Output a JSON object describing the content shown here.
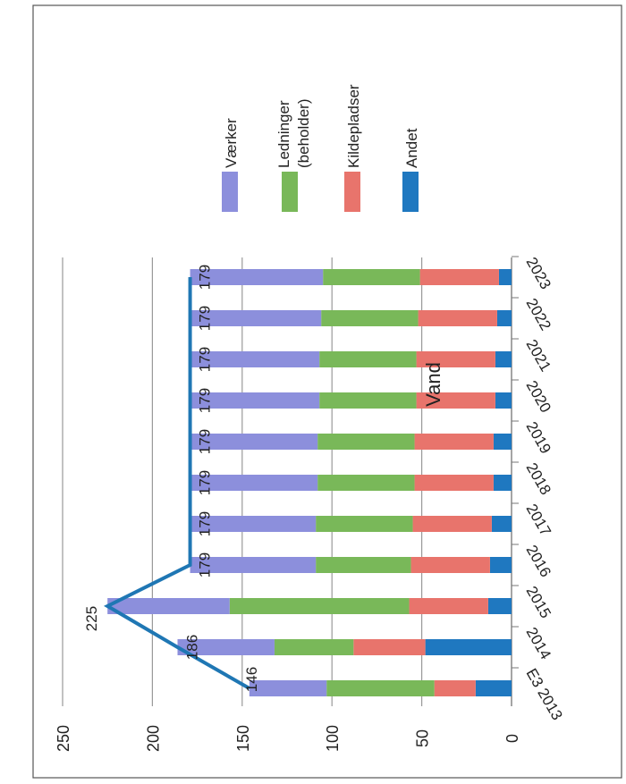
{
  "chart_data": {
    "type": "bar",
    "stacked": true,
    "orientation": "horizontal",
    "rotation": "rotated 90 degrees",
    "title": "Vand",
    "categories": [
      "E3 2013",
      "2014",
      "2015",
      "2016",
      "2017",
      "2018",
      "2019",
      "2020",
      "2021",
      "2022",
      "2023"
    ],
    "series": [
      {
        "name": "Andet",
        "color": "#1f78c0",
        "values": [
          20,
          48,
          13,
          12,
          11,
          10,
          10,
          9,
          9,
          8,
          7
        ]
      },
      {
        "name": "Kildepladser",
        "color": "#e8746c",
        "values": [
          23,
          40,
          44,
          44,
          44,
          44,
          44,
          44,
          44,
          44,
          44
        ]
      },
      {
        "name": "Ledninger (beholder)",
        "color": "#79b859",
        "values": [
          60,
          44,
          100,
          53,
          54,
          54,
          54,
          54,
          54,
          54,
          54
        ]
      },
      {
        "name": "Værker",
        "color": "#8c8fdc",
        "values": [
          43,
          54,
          68,
          70,
          70,
          71,
          71,
          72,
          72,
          73,
          74
        ]
      }
    ],
    "line": {
      "color": "#1f77b4",
      "values": [
        146,
        186,
        225,
        179,
        179,
        179,
        179,
        179,
        179,
        179,
        179
      ],
      "labels": [
        "146",
        "186",
        "225",
        "179",
        "179",
        "179",
        "179",
        "179",
        "179",
        "179",
        "179"
      ]
    },
    "value_axis": {
      "min": 0,
      "max": 250,
      "step": 50,
      "ticks": [
        "0",
        "50",
        "100",
        "150",
        "200",
        "250"
      ]
    },
    "grid": true,
    "legend_position": "right"
  }
}
